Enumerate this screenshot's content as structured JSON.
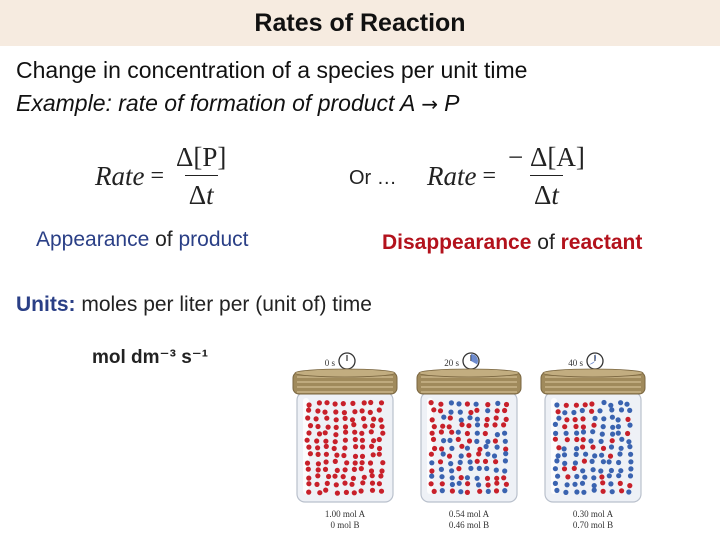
{
  "header": {
    "title": "Rates of Reaction"
  },
  "intro": {
    "definition": "Change in concentration of a species per unit time",
    "example_prefix": "Example: rate of formation of product",
    "reactant": "A",
    "arrow": "→",
    "product": "P"
  },
  "formulas": {
    "lhs": "Rate",
    "equals": "=",
    "left_numerator": "[P]",
    "right_numerator": "[A]",
    "delta": "Δ",
    "minus": "−",
    "time": "t",
    "or_text": "Or …"
  },
  "labels": {
    "appearance": "Appearance",
    "disappearance": "Disappearance",
    "of": "of",
    "product": "product",
    "reactant": "reactant"
  },
  "units": {
    "label": "Units:",
    "text": "moles per liter per (unit of) time",
    "expression": "mol dm⁻³ s⁻¹"
  },
  "jars": [
    {
      "time_label": "0 s",
      "mol_a": "1.00 mol A",
      "mol_b": "0 mol B",
      "fraction_b": 0.0
    },
    {
      "time_label": "20 s",
      "mol_a": "0.54 mol A",
      "mol_b": "0.46 mol B",
      "fraction_b": 0.46
    },
    {
      "time_label": "40 s",
      "mol_a": "0.30 mol A",
      "mol_b": "0.70 mol B",
      "fraction_b": 0.7
    }
  ],
  "colors": {
    "title_bg": "#f6ebe0",
    "accent_blue": "#2a3f86",
    "accent_red": "#b3121c",
    "particle_a": "#c8202a",
    "particle_b": "#3a63b0"
  }
}
